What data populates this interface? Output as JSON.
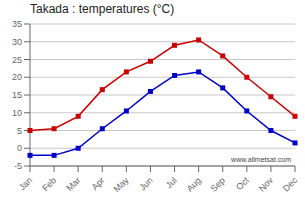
{
  "chart_data": {
    "type": "line",
    "title": "Takada : temperatures (°C)",
    "categories": [
      "Jan",
      "Feb",
      "Mar",
      "Apr",
      "May",
      "Jun",
      "Jul",
      "Aug",
      "Sep",
      "Oct",
      "Nov",
      "Dec"
    ],
    "series": [
      {
        "color": "#cc0000",
        "marker": "square",
        "values": [
          5.0,
          5.5,
          9.0,
          16.5,
          21.5,
          24.5,
          29.0,
          30.5,
          26.0,
          20.0,
          14.5,
          9.0
        ]
      },
      {
        "color": "#0000cc",
        "marker": "square",
        "values": [
          -2.0,
          -2.0,
          0.0,
          5.5,
          10.5,
          16.0,
          20.5,
          21.5,
          17.0,
          10.5,
          5.0,
          1.5
        ]
      }
    ],
    "ylim": [
      -5,
      35
    ],
    "yticks": [
      -5,
      0,
      5,
      10,
      15,
      20,
      25,
      30,
      35
    ],
    "grid": true,
    "annotation": "www.allmetsat.com"
  }
}
